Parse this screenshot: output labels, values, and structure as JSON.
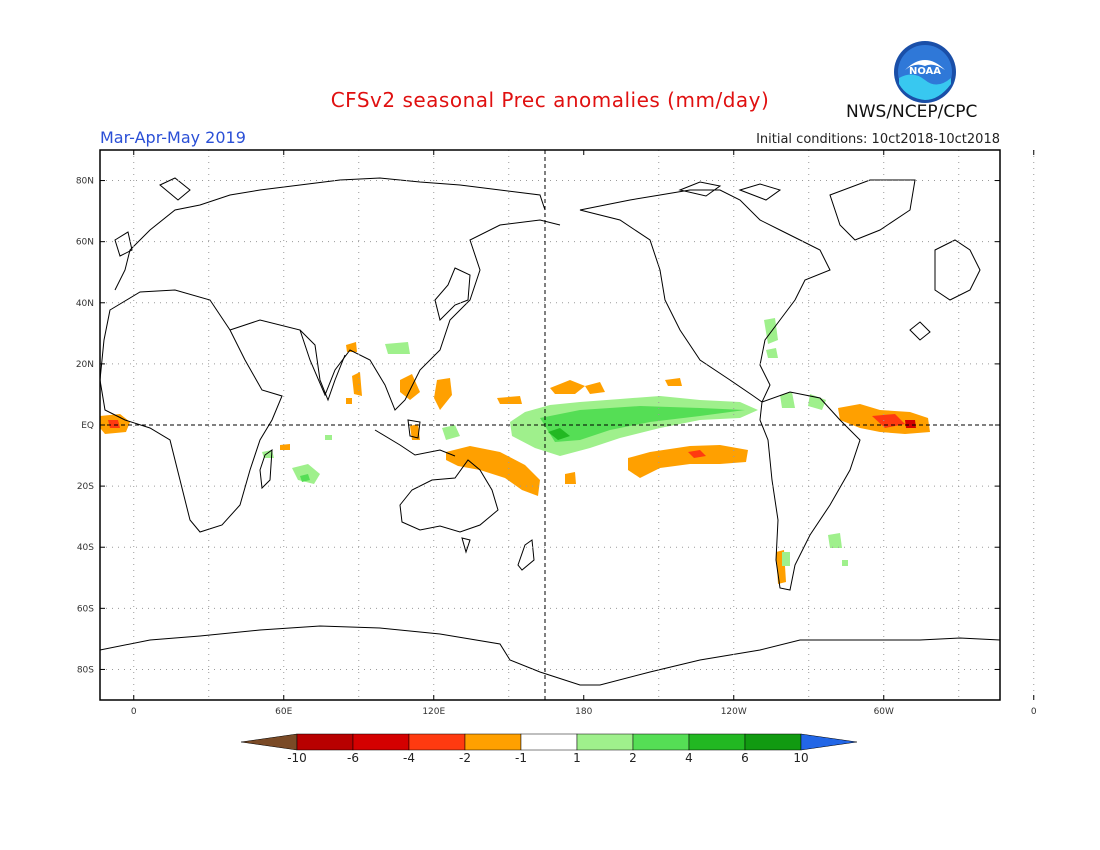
{
  "title": "CFSv2 seasonal Prec anomalies (mm/day)",
  "period": "Mar-Apr-May 2019",
  "initial_conditions": "Initial conditions: 10ct2018-10ct2018",
  "agency": "NWS/NCEP/CPC",
  "logo_text": "NOAA",
  "lat_labels": [
    "80N",
    "60N",
    "40N",
    "20N",
    "EQ",
    "20S",
    "40S",
    "60S",
    "80S"
  ],
  "lat_values": [
    80,
    60,
    40,
    20,
    0,
    -20,
    -40,
    -60,
    -80
  ],
  "lon_labels": [
    "0",
    "60E",
    "120E",
    "180",
    "120W",
    "60W",
    "0"
  ],
  "lon_values": [
    0,
    60,
    120,
    180,
    240,
    300,
    360
  ],
  "colorbar": {
    "labels": [
      "-10",
      "-6",
      "-4",
      "-2",
      "-1",
      "1",
      "2",
      "4",
      "6",
      "10"
    ],
    "colors": [
      "#7a4a26",
      "#b80000",
      "#d40000",
      "#ff3a10",
      "#ffa000",
      "#ffffff",
      "#9ff08c",
      "#55de55",
      "#22b822",
      "#119a11",
      "#2266e6"
    ]
  },
  "colors": {
    "coast": "#000000",
    "grid": "#9a9a9a",
    "green_light": "#9ff08c",
    "green_mid": "#55de55",
    "green_dark": "#22b822",
    "orange": "#ffa000",
    "red": "#ff3a10",
    "dark_red": "#d40000"
  }
}
